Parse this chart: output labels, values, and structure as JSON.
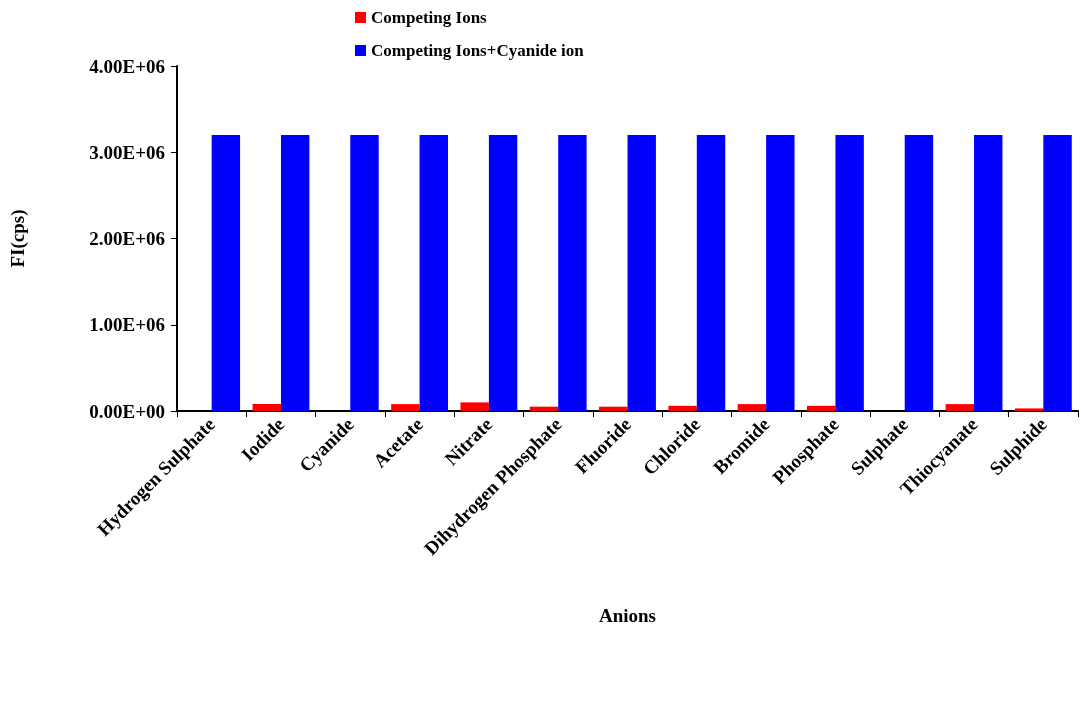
{
  "chart_data": {
    "type": "bar",
    "xlabel": "Anions",
    "ylabel": "FI(cps)",
    "categories": [
      "Hydrogen Sulphate",
      "Iodide",
      "Cyanide",
      "Acetate",
      "Nitrate",
      "Dihydrogen Phosphate",
      "Fluoride",
      "Chloride",
      "Bromide",
      "Phosphate",
      "Sulphate",
      "Thiocyanate",
      "Sulphide"
    ],
    "series": [
      {
        "name": "Competing Ions",
        "color": "#ff0000",
        "values": [
          0,
          80000,
          0,
          80000,
          100000,
          50000,
          50000,
          60000,
          80000,
          60000,
          0,
          80000,
          30000
        ]
      },
      {
        "name": "Competing Ions+Cyanide ion",
        "color": "#0000ff",
        "values": [
          3200000,
          3200000,
          3200000,
          3200000,
          3200000,
          3200000,
          3200000,
          3200000,
          3200000,
          3200000,
          3200000,
          3200000,
          3200000
        ]
      }
    ],
    "ylim": [
      0,
      4000000
    ],
    "yticks": [
      {
        "value": 0,
        "label": "0.00E+00"
      },
      {
        "value": 1000000,
        "label": "1.00E+06"
      },
      {
        "value": 2000000,
        "label": "2.00E+06"
      },
      {
        "value": 3000000,
        "label": "3.00E+06"
      },
      {
        "value": 4000000,
        "label": "4.00E+06"
      }
    ],
    "grid": false,
    "legend": "top"
  }
}
